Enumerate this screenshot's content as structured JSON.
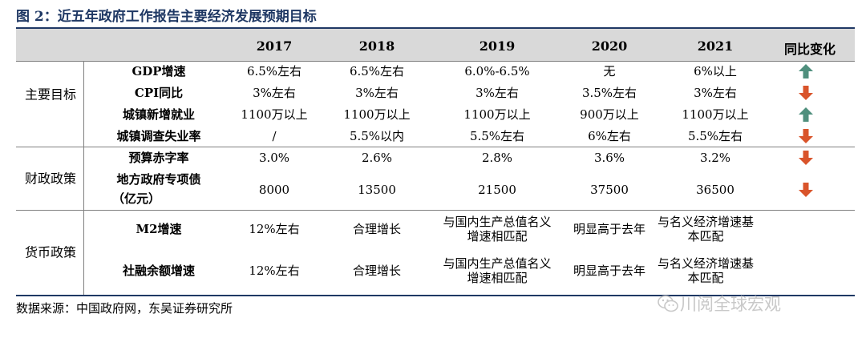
{
  "title": "图 2：近五年政府工作报告主要经济发展预期目标",
  "header": {
    "years": [
      "2017",
      "2018",
      "2019",
      "2020",
      "2021"
    ],
    "change": "同比变化"
  },
  "groups": {
    "main": "主要目标",
    "fiscal": "财政政策",
    "monetary": "货币政策"
  },
  "rows": [
    {
      "label": "GDP增速",
      "values": [
        "6.5%左右",
        "6.5%左右",
        "6.0%-6.5%",
        "无",
        "6%以上"
      ],
      "change": "up"
    },
    {
      "label": "CPI同比",
      "values": [
        "3%左右",
        "3%左右",
        "3%左右",
        "3.5%左右",
        "3%左右"
      ],
      "change": "down"
    },
    {
      "label": "城镇新增就业",
      "values": [
        "1100万以上",
        "1100万以上",
        "1100万以上",
        "900万以上",
        "1100万以上"
      ],
      "change": "up"
    },
    {
      "label": "城镇调查失业率",
      "values": [
        "/",
        "5.5%以内",
        "5.5%左右",
        "6%左右",
        "5.5%左右"
      ],
      "change": "down"
    },
    {
      "label": "预算赤字率",
      "values": [
        "3.0%",
        "2.6%",
        "2.8%",
        "3.6%",
        "3.2%"
      ],
      "change": "down"
    },
    {
      "label": "地方政府专项债（亿元）",
      "label_line1": "地方政府专项债",
      "label_line2": "（亿元）",
      "values": [
        "8000",
        "13500",
        "21500",
        "37500",
        "36500"
      ],
      "change": "down"
    },
    {
      "label": "M2增速",
      "values": [
        "12%左右",
        "合理增长",
        "与国内生产总值名义增速相匹配",
        "明显高于去年",
        "与名义经济增速基本匹配"
      ],
      "change": ""
    },
    {
      "label": "社融余额增速",
      "values": [
        "12%左右",
        "合理增长",
        "与国内生产总值名义增速相匹配",
        "明显高于去年",
        "与名义经济增速基本匹配"
      ],
      "change": ""
    }
  ],
  "colors": {
    "up": "#4f8f7d",
    "down": "#d9542b",
    "accent": "#1f3864"
  },
  "source": "数据来源：中国政府网，东吴证券研究所",
  "watermark": "川阅全球宏观"
}
